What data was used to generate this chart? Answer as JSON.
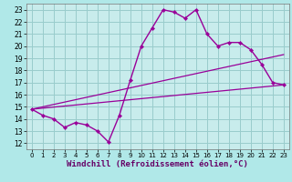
{
  "bg_color": "#b0e8e8",
  "plot_bg": "#c8ecec",
  "line_color": "#990099",
  "grid_color": "#99cccc",
  "xlabel": "Windchill (Refroidissement éolien,°C)",
  "xlabel_fontsize": 6.5,
  "xlim": [
    -0.5,
    23.5
  ],
  "ylim": [
    11.5,
    23.5
  ],
  "xticks": [
    0,
    1,
    2,
    3,
    4,
    5,
    6,
    7,
    8,
    9,
    10,
    11,
    12,
    13,
    14,
    15,
    16,
    17,
    18,
    19,
    20,
    21,
    22,
    23
  ],
  "yticks": [
    12,
    13,
    14,
    15,
    16,
    17,
    18,
    19,
    20,
    21,
    22,
    23
  ],
  "series1_x": [
    0,
    1,
    2,
    3,
    4,
    5,
    6,
    7,
    8,
    9,
    10,
    11,
    12,
    13,
    14,
    15,
    16,
    17,
    18,
    19,
    20,
    21,
    22,
    23
  ],
  "series1_y": [
    14.8,
    14.3,
    14.0,
    13.3,
    13.7,
    13.5,
    13.0,
    12.1,
    14.3,
    17.2,
    20.0,
    21.5,
    23.0,
    22.8,
    22.3,
    23.0,
    21.0,
    20.0,
    20.3,
    20.3,
    19.7,
    18.5,
    17.0,
    16.8
  ],
  "series2_x": [
    0,
    23
  ],
  "series2_y": [
    14.8,
    19.3
  ],
  "series3_x": [
    0,
    23
  ],
  "series3_y": [
    14.8,
    16.8
  ],
  "tick_fontsize": 5.0,
  "ytick_fontsize": 5.5
}
